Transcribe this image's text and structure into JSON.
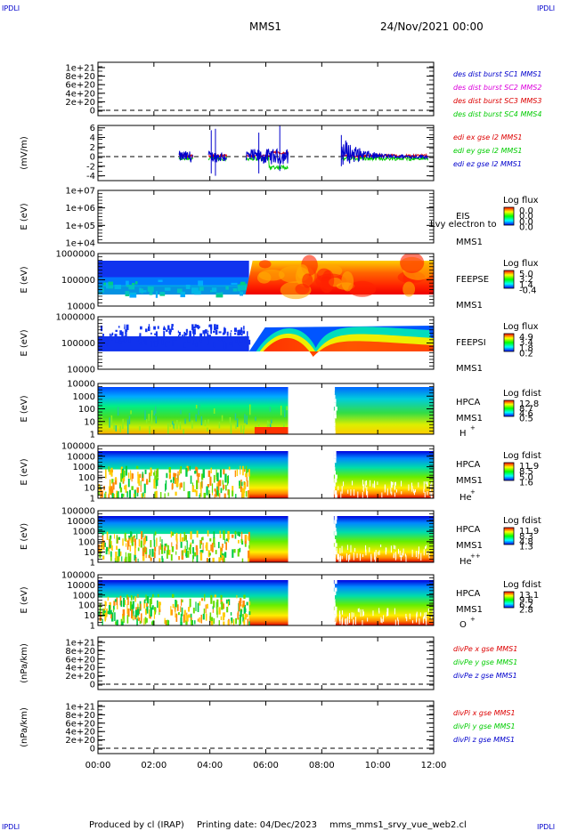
{
  "header": {
    "corner_tl": "IPDLI",
    "corner_tr": "IPDLI",
    "corner_bl": "IPDLI",
    "corner_br": "IPDLI",
    "spacecraft": "MMS1",
    "date": "24/Nov/2021 00:00"
  },
  "footer": {
    "produced_by": "Produced by cl (IRAP)",
    "printing_date": "Printing date: 04/Dec/2023",
    "script_name": "mms_mms1_srvy_vue_web2.cl"
  },
  "x_axis": {
    "ticks": [
      "00:00",
      "02:00",
      "04:00",
      "06:00",
      "08:00",
      "10:00",
      "12:00"
    ],
    "range_hours": [
      0,
      12
    ]
  },
  "colors": {
    "red": "#dd0000",
    "magenta": "#dd00dd",
    "green": "#00cc00",
    "blue": "#0000cc"
  },
  "chart_data": [
    {
      "type": "line",
      "id": "des_dist_burst",
      "xlabel": "",
      "ylabel": "",
      "yticks": [
        "1e+21",
        "8e+20",
        "6e+20",
        "4e+20",
        "2e+20",
        "0"
      ],
      "ylim": [
        0,
        1e+21
      ],
      "legend": [
        {
          "name": "des dist burst SC1 MMS1",
          "color": "#0000cc"
        },
        {
          "name": "des dist burst SC2 MMS2",
          "color": "#dd00dd"
        },
        {
          "name": "des dist burst SC3 MMS3",
          "color": "#dd0000"
        },
        {
          "name": "des dist burst SC4 MMS4",
          "color": "#00cc00"
        }
      ],
      "series": [],
      "zero_line": true
    },
    {
      "type": "line",
      "id": "edi_e_gse",
      "ylabel": "(mV/m)",
      "yticks": [
        "6",
        "4",
        "2",
        "0",
        "-2",
        "-4"
      ],
      "ylim": [
        -5,
        6.5
      ],
      "legend": [
        {
          "name": "edi ex gse l2 MMS1",
          "color": "#dd0000"
        },
        {
          "name": "edi ey gse l2 MMS1",
          "color": "#00cc00"
        },
        {
          "name": "edi ez gse l2 MMS1",
          "color": "#0000cc"
        }
      ],
      "segments_hours": [
        [
          2.9,
          3.4
        ],
        [
          3.95,
          4.6
        ],
        [
          5.3,
          6.8
        ],
        [
          8.7,
          11.8
        ]
      ],
      "zero_line": true
    },
    {
      "type": "heatmap",
      "id": "eis",
      "ylabel": "E (eV)",
      "yticks": [
        "1e+07",
        "1e+06",
        "1e+05",
        "1e+04"
      ],
      "instrument": "EIS",
      "spacecraft": "MMS1",
      "overlay_text": "Lvy electron to",
      "colorbar": {
        "title": "Log flux",
        "ticks": [
          "0.0",
          "0.0",
          "0.0",
          "0.0"
        ]
      },
      "empty": true
    },
    {
      "type": "heatmap",
      "id": "feepse",
      "ylabel": "E (eV)",
      "yticks": [
        "1000000",
        "100000",
        "10000"
      ],
      "instrument": "FEEPSE",
      "spacecraft": "MMS1",
      "colorbar": {
        "title": "Log flux",
        "ticks": [
          "5.0",
          "3.2",
          "1.4",
          "-0.4"
        ]
      },
      "transition_hour": 5.4
    },
    {
      "type": "heatmap",
      "id": "feepsi",
      "ylabel": "E (eV)",
      "yticks": [
        "1000000",
        "100000",
        "10000"
      ],
      "instrument": "FEEPSI",
      "spacecraft": "MMS1",
      "colorbar": {
        "title": "Log flux",
        "ticks": [
          "4.9",
          "3.4",
          "1.8",
          "0.2"
        ]
      },
      "transition_hour": 5.4
    },
    {
      "type": "heatmap",
      "id": "hpca_h",
      "ylabel": "E (eV)",
      "yticks": [
        "10000",
        "1000",
        "100",
        "10",
        "1"
      ],
      "instrument": "HPCA",
      "spacecraft": "MMS1",
      "species": "H",
      "charge": "+",
      "colorbar": {
        "title": "Log fdist",
        "ticks": [
          "12.8",
          "8.7",
          "4.6",
          "0.5"
        ]
      },
      "gap_hours": [
        6.8,
        8.4
      ]
    },
    {
      "type": "heatmap",
      "id": "hpca_he1",
      "ylabel": "E (eV)",
      "yticks": [
        "100000",
        "10000",
        "1000",
        "100",
        "10",
        "1"
      ],
      "instrument": "HPCA",
      "spacecraft": "MMS1",
      "species": "He",
      "charge": "+",
      "colorbar": {
        "title": "Log fdist",
        "ticks": [
          "11.9",
          "8.5",
          "5.0",
          "1.6"
        ]
      },
      "gap_hours": [
        6.8,
        8.4
      ]
    },
    {
      "type": "heatmap",
      "id": "hpca_he2",
      "ylabel": "E (eV)",
      "yticks": [
        "100000",
        "10000",
        "1000",
        "100",
        "10",
        "1"
      ],
      "instrument": "HPCA",
      "spacecraft": "MMS1",
      "species": "He",
      "charge": "++",
      "colorbar": {
        "title": "Log fdist",
        "ticks": [
          "11.9",
          "8.3",
          "4.8",
          "1.3"
        ]
      },
      "gap_hours": [
        6.8,
        8.4
      ]
    },
    {
      "type": "heatmap",
      "id": "hpca_o",
      "ylabel": "E (eV)",
      "yticks": [
        "100000",
        "10000",
        "1000",
        "100",
        "10",
        "1"
      ],
      "instrument": "HPCA",
      "spacecraft": "MMS1",
      "species": "O",
      "charge": "+",
      "colorbar": {
        "title": "Log fdist",
        "ticks": [
          "13.1",
          "9.6",
          "6.2",
          "2.8"
        ]
      },
      "gap_hours": [
        6.8,
        8.4
      ]
    },
    {
      "type": "line",
      "id": "divpe",
      "ylabel": "(nPa/km)",
      "yticks": [
        "1e+21",
        "8e+20",
        "6e+20",
        "4e+20",
        "2e+20",
        "0"
      ],
      "ylim": [
        0,
        1e+21
      ],
      "legend": [
        {
          "name": "divPe x gse MMS1",
          "color": "#dd0000"
        },
        {
          "name": "divPe y gse MMS1",
          "color": "#00cc00"
        },
        {
          "name": "divPe z gse MMS1",
          "color": "#0000cc"
        }
      ],
      "series": [],
      "zero_line": true
    },
    {
      "type": "line",
      "id": "divpi",
      "ylabel": "(nPa/km)",
      "yticks": [
        "1e+21",
        "8e+20",
        "6e+20",
        "4e+20",
        "2e+20",
        "0"
      ],
      "ylim": [
        0,
        1e+21
      ],
      "legend": [
        {
          "name": "divPi x gse MMS1",
          "color": "#dd0000"
        },
        {
          "name": "divPi y gse MMS1",
          "color": "#00cc00"
        },
        {
          "name": "divPi z gse MMS1",
          "color": "#0000cc"
        }
      ],
      "series": [],
      "zero_line": true
    }
  ]
}
